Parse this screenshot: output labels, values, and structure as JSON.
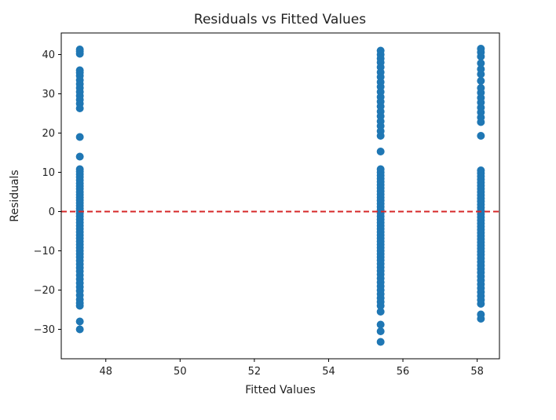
{
  "chart_data": {
    "type": "scatter",
    "title": "Residuals vs Fitted Values",
    "xlabel": "Fitted Values",
    "ylabel": "Residuals",
    "xlim": [
      46.8,
      58.6
    ],
    "ylim": [
      -37.5,
      45.5
    ],
    "xticks": [
      48,
      50,
      52,
      54,
      56,
      58
    ],
    "yticks": [
      -30,
      -20,
      -10,
      0,
      10,
      20,
      30,
      40
    ],
    "x_tick_labels": [
      "48",
      "50",
      "52",
      "54",
      "56",
      "58"
    ],
    "y_tick_labels": [
      "−30",
      "−20",
      "−10",
      "0",
      "10",
      "20",
      "30",
      "40"
    ],
    "grid": false,
    "marker_color": "#1f77b4",
    "reference_line": {
      "y": 0,
      "color": "#d62728",
      "style": "dashed"
    },
    "series": [
      {
        "x": 47.3,
        "residuals": [
          41.3,
          40.8,
          40.2,
          36.0,
          35.4,
          34.6,
          33.5,
          32.5,
          31.5,
          30.5,
          29.5,
          28.5,
          27.5,
          26.3,
          19.0,
          14.0,
          10.8,
          10.2,
          9.5,
          8.8,
          8.0,
          7.2,
          6.5,
          5.8,
          5.0,
          4.3,
          3.6,
          2.9,
          2.2,
          1.5,
          0.8,
          0.2,
          -0.5,
          -1.2,
          -2.0,
          -2.8,
          -3.6,
          -4.4,
          -5.2,
          -6.0,
          -6.8,
          -7.6,
          -8.4,
          -9.2,
          -10.0,
          -10.8,
          -11.6,
          -12.5,
          -13.4,
          -14.3,
          -15.2,
          -16.2,
          -17.2,
          -18.2,
          -19.2,
          -20.2,
          -21.3,
          -22.4,
          -23.3,
          -24.0,
          -28.0,
          -30.0
        ]
      },
      {
        "x": 55.4,
        "residuals": [
          41.0,
          40.0,
          39.0,
          38.0,
          36.8,
          35.5,
          34.3,
          33.0,
          31.8,
          30.5,
          29.2,
          28.0,
          26.8,
          25.5,
          24.3,
          23.0,
          21.8,
          20.5,
          19.3,
          15.3,
          10.8,
          10.0,
          9.2,
          8.4,
          7.6,
          6.8,
          6.0,
          5.2,
          4.4,
          3.6,
          2.8,
          2.0,
          1.2,
          0.4,
          -0.4,
          -1.2,
          -2.0,
          -2.8,
          -3.6,
          -4.4,
          -5.2,
          -6.0,
          -6.8,
          -7.6,
          -8.4,
          -9.2,
          -10.0,
          -10.8,
          -11.6,
          -12.4,
          -13.3,
          -14.2,
          -15.1,
          -16.0,
          -17.0,
          -18.0,
          -19.0,
          -20.0,
          -21.0,
          -22.0,
          -23.0,
          -24.0,
          -25.5,
          -28.8,
          -30.5,
          -33.2
        ]
      },
      {
        "x": 58.1,
        "residuals": [
          41.5,
          40.6,
          39.5,
          37.8,
          36.3,
          35.0,
          33.3,
          31.5,
          30.3,
          29.0,
          27.8,
          26.5,
          25.3,
          24.0,
          22.8,
          19.3,
          10.5,
          9.8,
          9.0,
          8.2,
          7.4,
          6.6,
          5.8,
          5.0,
          4.2,
          3.4,
          2.6,
          1.8,
          1.0,
          0.2,
          -0.6,
          -1.4,
          -2.2,
          -3.0,
          -3.8,
          -4.6,
          -5.4,
          -6.2,
          -7.0,
          -7.8,
          -8.6,
          -9.4,
          -10.2,
          -11.0,
          -11.9,
          -12.8,
          -13.7,
          -14.6,
          -15.5,
          -16.5,
          -17.5,
          -18.5,
          -19.5,
          -20.5,
          -21.5,
          -22.5,
          -23.5,
          -26.2,
          -27.3
        ]
      }
    ]
  }
}
